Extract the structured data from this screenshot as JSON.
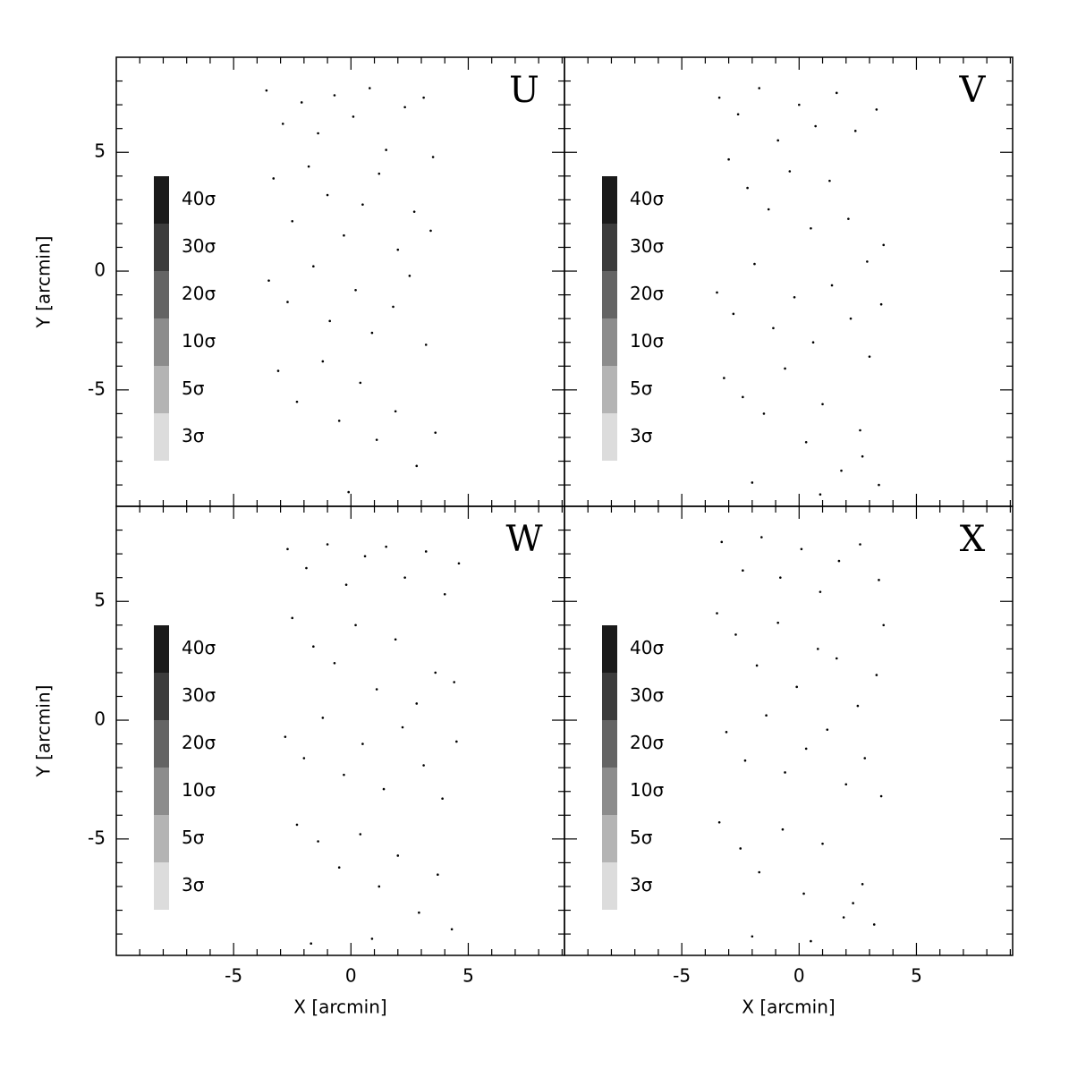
{
  "chart_data": [
    {
      "type": "scatter",
      "label": "U",
      "color": "#000000",
      "ylabel": "Y [arcmin]",
      "xticklabels": false,
      "yticklabels": true,
      "xlim": [
        -10,
        9.1
      ],
      "ylim": [
        -9.9,
        9
      ],
      "xticks": [
        -5,
        0,
        5
      ],
      "yticks": [
        -5,
        0,
        5
      ],
      "xminorticks": [
        -9,
        -8,
        -7,
        -6,
        -4,
        -3,
        -2,
        -1,
        1,
        2,
        3,
        4,
        6,
        7,
        8,
        9
      ],
      "yminorticks": [
        -9,
        -8,
        -7,
        -6,
        -4,
        -3,
        -2,
        -1,
        1,
        2,
        3,
        4,
        6,
        7,
        8
      ],
      "colorbar": {
        "labels": [
          "40σ",
          "30σ",
          "20σ",
          "10σ",
          "5σ",
          "3σ"
        ],
        "colors": [
          "#1a1a1a",
          "#3c3c3c",
          "#646464",
          "#8c8c8c",
          "#b4b4b4",
          "#dcdcdc"
        ]
      },
      "x": [
        -3.6,
        -2.9,
        -2.1,
        -1.4,
        -0.7,
        0.1,
        0.8,
        1.5,
        2.3,
        3.1,
        3.5,
        -3.3,
        -2.5,
        -1.8,
        -1.0,
        -0.3,
        0.5,
        1.2,
        2.0,
        2.7,
        3.4,
        -3.5,
        -2.7,
        -1.6,
        -0.9,
        0.2,
        0.9,
        1.8,
        2.5,
        3.2,
        -3.1,
        -2.3,
        -1.2,
        -0.5,
        0.4,
        1.1,
        1.9,
        2.8,
        3.6,
        -0.1
      ],
      "y": [
        7.6,
        6.2,
        7.1,
        5.8,
        7.4,
        6.5,
        7.7,
        5.1,
        6.9,
        7.3,
        4.8,
        3.9,
        2.1,
        4.4,
        3.2,
        1.5,
        2.8,
        4.1,
        0.9,
        2.5,
        1.7,
        -0.4,
        -1.3,
        0.2,
        -2.1,
        -0.8,
        -2.6,
        -1.5,
        -0.2,
        -3.1,
        -4.2,
        -5.5,
        -3.8,
        -6.3,
        -4.7,
        -7.1,
        -5.9,
        -8.2,
        -6.8,
        -9.3
      ]
    },
    {
      "type": "scatter",
      "label": "V",
      "color": "#000000",
      "xticklabels": false,
      "yticklabels": false,
      "xlim": [
        -10,
        9.1
      ],
      "ylim": [
        -9.9,
        9
      ],
      "xticks": [
        -5,
        0,
        5
      ],
      "yticks": [
        -5,
        0,
        5
      ],
      "xminorticks": [
        -9,
        -8,
        -7,
        -6,
        -4,
        -3,
        -2,
        -1,
        1,
        2,
        3,
        4,
        6,
        7,
        8,
        9
      ],
      "yminorticks": [
        -9,
        -8,
        -7,
        -6,
        -4,
        -3,
        -2,
        -1,
        1,
        2,
        3,
        4,
        6,
        7,
        8
      ],
      "colorbar": {
        "labels": [
          "40σ",
          "30σ",
          "20σ",
          "10σ",
          "5σ",
          "3σ"
        ],
        "colors": [
          "#1a1a1a",
          "#3c3c3c",
          "#646464",
          "#8c8c8c",
          "#b4b4b4",
          "#dcdcdc"
        ]
      },
      "x": [
        -3.4,
        -2.6,
        -1.7,
        -0.9,
        0.0,
        0.7,
        1.6,
        2.4,
        3.3,
        -3.0,
        -2.2,
        -1.3,
        -0.4,
        0.5,
        1.3,
        2.1,
        2.9,
        3.6,
        -3.5,
        -2.8,
        -1.9,
        -1.1,
        -0.2,
        0.6,
        1.4,
        2.2,
        3.0,
        3.5,
        -3.2,
        -2.4,
        -1.5,
        -0.6,
        0.3,
        1.0,
        1.8,
        2.6,
        3.4,
        -2.0,
        0.9,
        2.7
      ],
      "y": [
        7.3,
        6.6,
        7.7,
        5.5,
        7.0,
        6.1,
        7.5,
        5.9,
        6.8,
        4.7,
        3.5,
        2.6,
        4.2,
        1.8,
        3.8,
        2.2,
        0.4,
        1.1,
        -0.9,
        -1.8,
        0.3,
        -2.4,
        -1.1,
        -3.0,
        -0.6,
        -2.0,
        -3.6,
        -1.4,
        -4.5,
        -5.3,
        -6.0,
        -4.1,
        -7.2,
        -5.6,
        -8.4,
        -6.7,
        -9.0,
        -8.9,
        -9.4,
        -7.8
      ]
    },
    {
      "type": "scatter",
      "label": "W",
      "color": "#000000",
      "xlabel": "X [arcmin]",
      "ylabel": "Y [arcmin]",
      "xticklabels": true,
      "yticklabels": true,
      "xlim": [
        -10,
        9.1
      ],
      "ylim": [
        -9.9,
        9
      ],
      "xticks": [
        -5,
        0,
        5
      ],
      "yticks": [
        -5,
        0,
        5
      ],
      "xminorticks": [
        -9,
        -8,
        -7,
        -6,
        -4,
        -3,
        -2,
        -1,
        1,
        2,
        3,
        4,
        6,
        7,
        8,
        9
      ],
      "yminorticks": [
        -9,
        -8,
        -7,
        -6,
        -4,
        -3,
        -2,
        -1,
        1,
        2,
        3,
        4,
        6,
        7,
        8
      ],
      "colorbar": {
        "labels": [
          "40σ",
          "30σ",
          "20σ",
          "10σ",
          "5σ",
          "3σ"
        ],
        "colors": [
          "#1a1a1a",
          "#3c3c3c",
          "#646464",
          "#8c8c8c",
          "#b4b4b4",
          "#dcdcdc"
        ]
      },
      "x": [
        -2.7,
        -1.9,
        -1.0,
        -0.2,
        0.6,
        1.5,
        2.3,
        3.2,
        4.0,
        4.6,
        -2.5,
        -1.6,
        -0.7,
        0.2,
        1.1,
        1.9,
        2.8,
        3.6,
        4.4,
        -2.8,
        -2.0,
        -1.2,
        -0.3,
        0.5,
        1.4,
        2.2,
        3.1,
        3.9,
        4.5,
        -2.3,
        -1.4,
        -0.5,
        0.4,
        1.2,
        2.0,
        2.9,
        3.7,
        4.3,
        0.9,
        -1.7
      ],
      "y": [
        7.2,
        6.4,
        7.4,
        5.7,
        6.9,
        7.3,
        6.0,
        7.1,
        5.3,
        6.6,
        4.3,
        3.1,
        2.4,
        4.0,
        1.3,
        3.4,
        0.7,
        2.0,
        1.6,
        -0.7,
        -1.6,
        0.1,
        -2.3,
        -1.0,
        -2.9,
        -0.3,
        -1.9,
        -3.3,
        -0.9,
        -4.4,
        -5.1,
        -6.2,
        -4.8,
        -7.0,
        -5.7,
        -8.1,
        -6.5,
        -8.8,
        -9.2,
        -9.4
      ]
    },
    {
      "type": "scatter",
      "label": "X",
      "color": "#000000",
      "xlabel": "X [arcmin]",
      "xticklabels": true,
      "yticklabels": false,
      "xlim": [
        -10,
        9.1
      ],
      "ylim": [
        -9.9,
        9
      ],
      "xticks": [
        -5,
        0,
        5
      ],
      "yticks": [
        -5,
        0,
        5
      ],
      "xminorticks": [
        -9,
        -8,
        -7,
        -6,
        -4,
        -3,
        -2,
        -1,
        1,
        2,
        3,
        4,
        6,
        7,
        8,
        9
      ],
      "yminorticks": [
        -9,
        -8,
        -7,
        -6,
        -4,
        -3,
        -2,
        -1,
        1,
        2,
        3,
        4,
        6,
        7,
        8
      ],
      "colorbar": {
        "labels": [
          "40σ",
          "30σ",
          "20σ",
          "10σ",
          "5σ",
          "3σ"
        ],
        "colors": [
          "#1a1a1a",
          "#3c3c3c",
          "#646464",
          "#8c8c8c",
          "#b4b4b4",
          "#dcdcdc"
        ]
      },
      "x": [
        -3.3,
        -2.4,
        -1.6,
        -0.8,
        0.1,
        0.9,
        1.7,
        2.6,
        3.4,
        -3.5,
        -2.7,
        -1.8,
        -0.9,
        -0.1,
        0.8,
        1.6,
        2.5,
        3.3,
        3.6,
        -3.1,
        -2.3,
        -1.4,
        -0.6,
        0.3,
        1.2,
        2.0,
        2.8,
        3.5,
        -3.4,
        -2.5,
        -1.7,
        -0.7,
        0.2,
        1.0,
        1.9,
        2.7,
        3.2,
        -2.0,
        0.5,
        2.3
      ],
      "y": [
        7.5,
        6.3,
        7.7,
        6.0,
        7.2,
        5.4,
        6.7,
        7.4,
        5.9,
        4.5,
        3.6,
        2.3,
        4.1,
        1.4,
        3.0,
        2.6,
        0.6,
        1.9,
        4.0,
        -0.5,
        -1.7,
        0.2,
        -2.2,
        -1.2,
        -0.4,
        -2.7,
        -1.6,
        -3.2,
        -4.3,
        -5.4,
        -6.4,
        -4.6,
        -7.3,
        -5.2,
        -8.3,
        -6.9,
        -8.6,
        -9.1,
        -9.3,
        -7.7
      ]
    }
  ]
}
